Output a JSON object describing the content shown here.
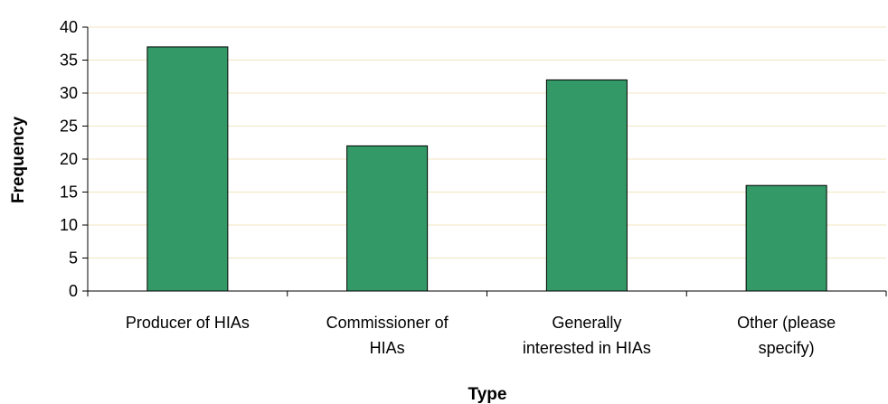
{
  "chart_data": {
    "type": "bar",
    "title": "",
    "xlabel": "Type",
    "ylabel": "Frequency",
    "categories": [
      [
        "Producer of HIAs"
      ],
      [
        "Commissioner of",
        "HIAs"
      ],
      [
        "Generally",
        "interested in HIAs"
      ],
      [
        "Other (please",
        "specify)"
      ]
    ],
    "values": [
      37,
      22,
      32,
      16
    ],
    "ylim": [
      0,
      40
    ],
    "yticks": [
      "0",
      "5",
      "10",
      "15",
      "20",
      "25",
      "30",
      "35",
      "40"
    ],
    "grid": true,
    "legend": "none",
    "colors": {
      "bar_fill": "#339966",
      "bar_stroke": "#000000",
      "gridline": "#f0e6bf",
      "axis": "#000000"
    }
  }
}
